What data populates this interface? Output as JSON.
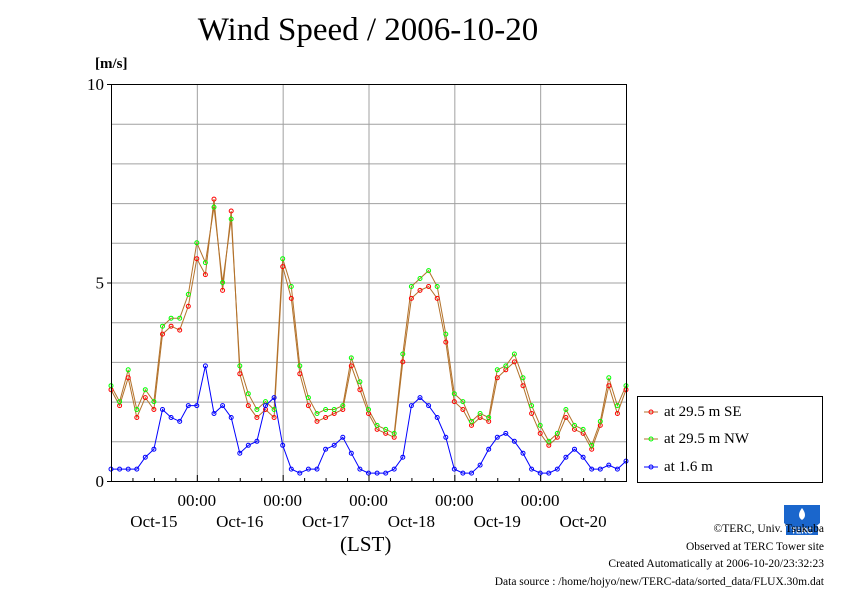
{
  "header": {
    "title": "Wind Speed / 2006-10-20",
    "unit_label": "[m/s]"
  },
  "axis": {
    "x_unit_label": "(LST)"
  },
  "legend": {
    "items": [
      {
        "label": "at 29.5 m SE",
        "color": "#ff0000"
      },
      {
        "label": "at 29.5 m NW",
        "color": "#00ff00"
      },
      {
        "label": "at 1.6 m",
        "color": "#0000ff"
      }
    ]
  },
  "credits": {
    "line1": "©TERC, Univ. Tsukuba",
    "line2": "Observed at TERC Tower site",
    "line3": "Created Automatically at 2006-10-20/23:32:23",
    "line4": "Data source : /home/hojyo/new/TERC-data/sorted_data/FLUX.30m.dat",
    "logo_text": "TERC"
  },
  "chart_data": {
    "type": "line",
    "title": "Wind Speed / 2006-10-20",
    "ylabel": "[m/s]",
    "xlabel": "(LST)",
    "ylim": [
      0,
      10
    ],
    "yticks": [
      0,
      5,
      10
    ],
    "xlim_days": [
      0,
      6
    ],
    "xtick_time_labels": [
      "00:00",
      "00:00",
      "00:00",
      "00:00",
      "00:00"
    ],
    "xtick_date_labels": [
      "Oct-15",
      "Oct-16",
      "Oct-17",
      "Oct-18",
      "Oct-19",
      "Oct-20"
    ],
    "grid": true,
    "legend_placement": "right",
    "series": [
      {
        "name": "at 29.5 m SE",
        "color": "#ff0000",
        "x_days": [
          0.0,
          0.1,
          0.2,
          0.3,
          0.4,
          0.5,
          0.6,
          0.7,
          0.8,
          0.9,
          1.0,
          1.1,
          1.2,
          1.3,
          1.4,
          1.5,
          1.6,
          1.7,
          1.8,
          1.9,
          2.0,
          2.1,
          2.2,
          2.3,
          2.4,
          2.5,
          2.6,
          2.7,
          2.8,
          2.9,
          3.0,
          3.1,
          3.2,
          3.3,
          3.4,
          3.5,
          3.6,
          3.7,
          3.8,
          3.9,
          4.0,
          4.1,
          4.2,
          4.3,
          4.4,
          4.5,
          4.6,
          4.7,
          4.8,
          4.9,
          5.0,
          5.1,
          5.2,
          5.3,
          5.4,
          5.5,
          5.6,
          5.7,
          5.8,
          5.9,
          6.0
        ],
        "values": [
          2.3,
          1.9,
          2.6,
          1.6,
          2.1,
          1.8,
          3.7,
          3.9,
          3.8,
          4.4,
          5.6,
          5.2,
          7.1,
          4.8,
          6.8,
          2.7,
          1.9,
          1.6,
          1.8,
          1.6,
          5.4,
          4.6,
          2.7,
          1.9,
          1.5,
          1.6,
          1.7,
          1.8,
          2.9,
          2.3,
          1.7,
          1.3,
          1.2,
          1.1,
          3.0,
          4.6,
          4.8,
          4.9,
          4.6,
          3.5,
          2.0,
          1.8,
          1.4,
          1.6,
          1.5,
          2.6,
          2.8,
          3.0,
          2.4,
          1.7,
          1.2,
          0.9,
          1.1,
          1.6,
          1.3,
          1.2,
          0.8,
          1.4,
          2.4,
          1.7,
          2.3
        ]
      },
      {
        "name": "at 29.5 m NW",
        "color": "#00ff00",
        "x_days": [
          0.0,
          0.1,
          0.2,
          0.3,
          0.4,
          0.5,
          0.6,
          0.7,
          0.8,
          0.9,
          1.0,
          1.1,
          1.2,
          1.3,
          1.4,
          1.5,
          1.6,
          1.7,
          1.8,
          1.9,
          2.0,
          2.1,
          2.2,
          2.3,
          2.4,
          2.5,
          2.6,
          2.7,
          2.8,
          2.9,
          3.0,
          3.1,
          3.2,
          3.3,
          3.4,
          3.5,
          3.6,
          3.7,
          3.8,
          3.9,
          4.0,
          4.1,
          4.2,
          4.3,
          4.4,
          4.5,
          4.6,
          4.7,
          4.8,
          4.9,
          5.0,
          5.1,
          5.2,
          5.3,
          5.4,
          5.5,
          5.6,
          5.7,
          5.8,
          5.9,
          6.0
        ],
        "values": [
          2.4,
          2.0,
          2.8,
          1.8,
          2.3,
          2.0,
          3.9,
          4.1,
          4.1,
          4.7,
          6.0,
          5.5,
          6.9,
          5.0,
          6.6,
          2.9,
          2.2,
          1.8,
          2.0,
          1.8,
          5.6,
          4.9,
          2.9,
          2.1,
          1.7,
          1.8,
          1.8,
          1.9,
          3.1,
          2.5,
          1.8,
          1.4,
          1.3,
          1.2,
          3.2,
          4.9,
          5.1,
          5.3,
          4.9,
          3.7,
          2.2,
          2.0,
          1.5,
          1.7,
          1.6,
          2.8,
          2.9,
          3.2,
          2.6,
          1.9,
          1.4,
          1.0,
          1.2,
          1.8,
          1.4,
          1.3,
          0.9,
          1.5,
          2.6,
          1.9,
          2.4
        ]
      },
      {
        "name": "at 1.6 m",
        "color": "#0000ff",
        "x_days": [
          0.0,
          0.1,
          0.2,
          0.3,
          0.4,
          0.5,
          0.6,
          0.7,
          0.8,
          0.9,
          1.0,
          1.1,
          1.2,
          1.3,
          1.4,
          1.5,
          1.6,
          1.7,
          1.8,
          1.9,
          2.0,
          2.1,
          2.2,
          2.3,
          2.4,
          2.5,
          2.6,
          2.7,
          2.8,
          2.9,
          3.0,
          3.1,
          3.2,
          3.3,
          3.4,
          3.5,
          3.6,
          3.7,
          3.8,
          3.9,
          4.0,
          4.1,
          4.2,
          4.3,
          4.4,
          4.5,
          4.6,
          4.7,
          4.8,
          4.9,
          5.0,
          5.1,
          5.2,
          5.3,
          5.4,
          5.5,
          5.6,
          5.7,
          5.8,
          5.9,
          6.0
        ],
        "values": [
          0.3,
          0.3,
          0.3,
          0.3,
          0.6,
          0.8,
          1.8,
          1.6,
          1.5,
          1.9,
          1.9,
          2.9,
          1.7,
          1.9,
          1.6,
          0.7,
          0.9,
          1.0,
          1.9,
          2.1,
          0.9,
          0.3,
          0.2,
          0.3,
          0.3,
          0.8,
          0.9,
          1.1,
          0.7,
          0.3,
          0.2,
          0.2,
          0.2,
          0.3,
          0.6,
          1.9,
          2.1,
          1.9,
          1.6,
          1.1,
          0.3,
          0.2,
          0.2,
          0.4,
          0.8,
          1.1,
          1.2,
          1.0,
          0.7,
          0.3,
          0.2,
          0.2,
          0.3,
          0.6,
          0.8,
          0.6,
          0.3,
          0.3,
          0.4,
          0.3,
          0.5
        ]
      }
    ]
  }
}
